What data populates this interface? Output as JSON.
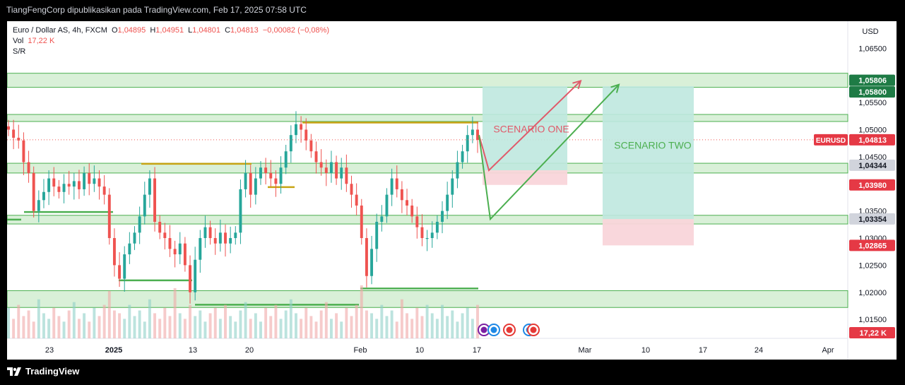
{
  "header": {
    "text": "TiangFengCorp dipublikasikan pada TradingView.com, Feb 17, 2025 07:58 UTC"
  },
  "footer": {
    "brand": "TradingView"
  },
  "legend": {
    "symbol": "Euro / Dollar AS, 4h, FXCM",
    "o_label": "O",
    "o_value": "1,04895",
    "h_label": "H",
    "h_value": "1,04951",
    "l_label": "L",
    "l_value": "1,04801",
    "c_label": "C",
    "c_value": "1,04813",
    "change": "−0,00082 (−0,08%)",
    "vol_label": "Vol",
    "vol_value": "17,22 K",
    "indicator": "S/R"
  },
  "colors": {
    "up": "#26a69a",
    "down": "#ef5350",
    "zone_fill": "#d9f0d8",
    "zone_edge": "#4caf50",
    "level": "#4caf50",
    "level_gold": "#c8a415",
    "scenario_one": "#e05a6a",
    "scenario_two": "#4caf50",
    "target_fill": "#bfe8df",
    "stop_fill": "#f9d5da",
    "volume_up": "#8fd0c8",
    "volume_down": "#f0a8a8"
  },
  "chart_data": {
    "type": "candlestick",
    "symbol": "EURUSD",
    "timeframe": "4h",
    "currency": "USD",
    "ylim": [
      1.0115,
      1.07
    ],
    "y_ticks": [
      "1,06500",
      "1,05500",
      "1,05000",
      "1,04500",
      "1,03500",
      "1,03000",
      "1,02500",
      "1,02000",
      "1,01500"
    ],
    "x_ticks": [
      "23",
      "2025",
      "13",
      "20",
      "Feb",
      "10",
      "17",
      "Mar",
      "10",
      "17",
      "24",
      "Apr"
    ],
    "price_labels": [
      {
        "text": "1,05806",
        "kind": "green"
      },
      {
        "text": "1,05800",
        "kind": "green"
      },
      {
        "text": "1,04813",
        "kind": "red",
        "tag": "EURUSD"
      },
      {
        "text": "1,04344",
        "kind": "gray"
      },
      {
        "text": "1,03980",
        "kind": "red"
      },
      {
        "text": "1,03354",
        "kind": "gray"
      },
      {
        "text": "1,02865",
        "kind": "red"
      },
      {
        "text": "17,22 K",
        "kind": "red"
      }
    ],
    "zones": [
      [
        1.0578,
        1.0604
      ],
      [
        1.0515,
        1.0528
      ],
      [
        1.042,
        1.0438
      ],
      [
        1.0326,
        1.0342
      ],
      [
        1.0172,
        1.0203
      ]
    ],
    "last_price": 1.04813,
    "scenario_one": {
      "label": "SCENARIO ONE",
      "path": [
        1.049,
        1.0425,
        1.059
      ],
      "target": 1.058,
      "stop": 1.0398
    },
    "scenario_two": {
      "label": "SCENARIO TWO",
      "path": [
        1.049,
        1.0335,
        1.0583
      ],
      "target": 1.058,
      "stop": 1.02865
    },
    "close_series": [
      1.05,
      1.0485,
      1.048,
      1.044,
      1.042,
      1.035,
      1.037,
      1.0385,
      1.041,
      1.0395,
      1.0385,
      1.04,
      1.0395,
      1.0405,
      1.039,
      1.042,
      1.04,
      1.041,
      1.0395,
      1.038,
      1.03,
      1.025,
      1.0225,
      1.027,
      1.029,
      1.031,
      1.034,
      1.038,
      1.041,
      1.033,
      1.031,
      1.03,
      1.028,
      1.027,
      1.029,
      1.025,
      1.02,
      1.026,
      1.03,
      1.032,
      1.03,
      1.029,
      1.031,
      1.029,
      1.03,
      1.031,
      1.039,
      1.042,
      1.038,
      1.041,
      1.043,
      1.042,
      1.041,
      1.04,
      1.043,
      1.046,
      1.049,
      1.051,
      1.05,
      1.048,
      1.046,
      1.044,
      1.043,
      1.042,
      1.044,
      1.041,
      1.043,
      1.04,
      1.038,
      1.036,
      1.03,
      1.023,
      1.028,
      1.033,
      1.034,
      1.038,
      1.041,
      1.039,
      1.037,
      1.036,
      1.034,
      1.032,
      1.03,
      1.03,
      1.031,
      1.033,
      1.035,
      1.038,
      1.041,
      1.044,
      1.046,
      1.049,
      1.05,
      1.0481
    ],
    "volume": [
      0.55,
      0.35,
      0.6,
      0.4,
      0.5,
      0.3,
      0.7,
      0.45,
      0.35,
      0.55,
      0.4,
      0.3,
      0.5,
      0.65,
      0.35,
      0.45,
      0.3,
      0.55,
      0.4,
      0.6,
      0.85,
      0.5,
      0.45,
      0.35,
      0.6,
      0.4,
      0.5,
      0.3,
      0.7,
      0.45,
      0.35,
      0.55,
      0.4,
      0.9,
      0.45,
      0.35,
      0.6,
      0.4,
      0.5,
      0.3,
      0.45,
      0.55,
      0.35,
      0.6,
      0.4,
      0.3,
      0.5,
      0.65,
      0.35,
      0.45,
      0.3,
      0.55,
      0.4,
      0.6,
      0.35,
      0.5,
      0.7,
      0.45,
      0.35,
      0.55,
      0.4,
      0.3,
      0.5,
      0.65,
      0.35,
      0.45,
      0.3,
      0.55,
      0.4,
      0.6,
      0.95,
      0.5,
      0.45,
      0.35,
      0.6,
      0.4,
      0.5,
      0.3,
      0.7,
      0.45,
      0.35,
      0.55,
      0.4,
      0.6,
      0.45,
      0.35,
      0.6,
      0.4,
      0.5,
      0.3,
      0.45,
      0.55,
      0.35,
      0.6
    ]
  }
}
